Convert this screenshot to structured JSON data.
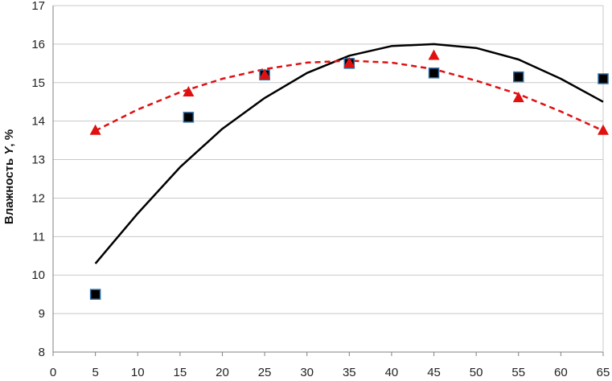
{
  "chart_data": {
    "type": "scatter",
    "title": "",
    "xlabel": "",
    "ylabel_prefix": "Влажность ",
    "ylabel_var": "Y",
    "ylabel_suffix": ", %",
    "xlim": [
      0,
      65
    ],
    "ylim": [
      8,
      17
    ],
    "xticks": [
      "0",
      "5",
      "10",
      "15",
      "20",
      "25",
      "30",
      "35",
      "40",
      "45",
      "50",
      "55",
      "60",
      "65"
    ],
    "yticks": [
      "8",
      "9",
      "10",
      "11",
      "12",
      "13",
      "14",
      "15",
      "16",
      "17"
    ],
    "grid": "horizontal",
    "legend": "none",
    "series": [
      {
        "marker": "square",
        "color": "#000000",
        "edge_color": "#2e6da4",
        "points": [
          [
            5,
            9.5
          ],
          [
            16,
            14.1
          ],
          [
            25,
            15.2
          ],
          [
            35,
            15.5
          ],
          [
            45,
            15.25
          ],
          [
            55,
            15.15
          ],
          [
            65,
            15.1
          ]
        ]
      },
      {
        "marker": "triangle",
        "color": "#e01010",
        "points": [
          [
            5,
            13.75
          ],
          [
            16,
            14.75
          ],
          [
            25,
            15.2
          ],
          [
            35,
            15.5
          ],
          [
            45,
            15.7
          ],
          [
            55,
            14.6
          ],
          [
            65,
            13.75
          ]
        ]
      }
    ],
    "trendlines": [
      {
        "style": "solid",
        "color": "#000000",
        "points": [
          [
            5,
            10.3
          ],
          [
            10,
            11.6
          ],
          [
            15,
            12.8
          ],
          [
            20,
            13.8
          ],
          [
            25,
            14.6
          ],
          [
            30,
            15.25
          ],
          [
            35,
            15.7
          ],
          [
            40,
            15.95
          ],
          [
            45,
            16.0
          ],
          [
            50,
            15.9
          ],
          [
            55,
            15.6
          ],
          [
            60,
            15.1
          ],
          [
            65,
            14.5
          ]
        ]
      },
      {
        "style": "dashed",
        "color": "#e01010",
        "points": [
          [
            5,
            13.75
          ],
          [
            10,
            14.3
          ],
          [
            15,
            14.75
          ],
          [
            20,
            15.1
          ],
          [
            25,
            15.35
          ],
          [
            30,
            15.52
          ],
          [
            35,
            15.57
          ],
          [
            40,
            15.52
          ],
          [
            45,
            15.35
          ],
          [
            50,
            15.05
          ],
          [
            55,
            14.7
          ],
          [
            60,
            14.25
          ],
          [
            65,
            13.75
          ]
        ]
      }
    ]
  }
}
